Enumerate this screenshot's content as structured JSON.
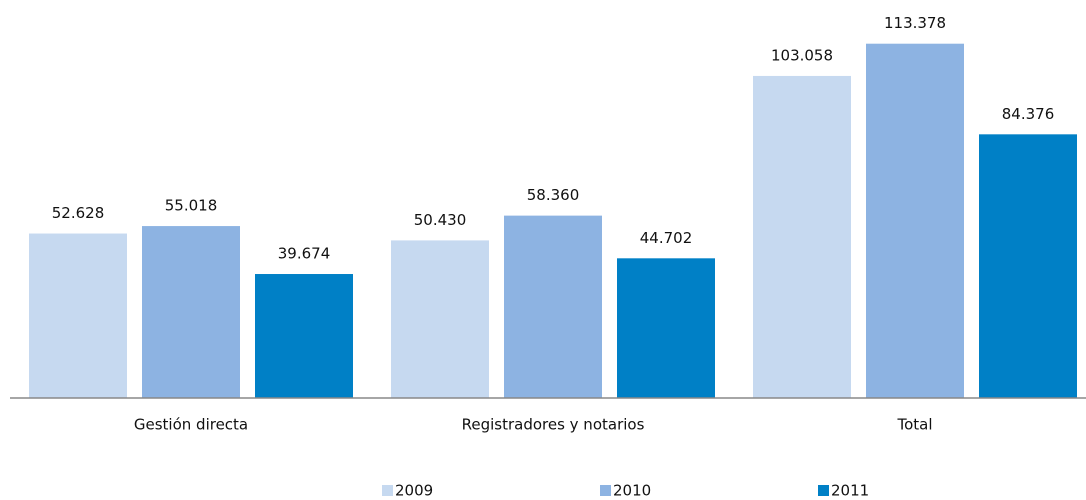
{
  "chart_data": {
    "type": "bar",
    "categories": [
      "Gestión directa",
      "Registradores y notarios",
      "Total"
    ],
    "series": [
      {
        "name": "2009",
        "color": "#c6d9f0",
        "values": [
          52628,
          50430,
          103058
        ],
        "value_labels": [
          "52.628",
          "50.430",
          "103.058"
        ]
      },
      {
        "name": "2010",
        "color": "#8db3e2",
        "values": [
          55018,
          58360,
          113378
        ],
        "value_labels": [
          "55.018",
          "58.360",
          "113.378"
        ]
      },
      {
        "name": "2011",
        "color": "#0080c6",
        "values": [
          39674,
          44702,
          84376
        ],
        "value_labels": [
          "39.674",
          "44.702",
          "84.376"
        ]
      }
    ],
    "ylim": [
      0,
      120000
    ],
    "legend": "bottom"
  }
}
